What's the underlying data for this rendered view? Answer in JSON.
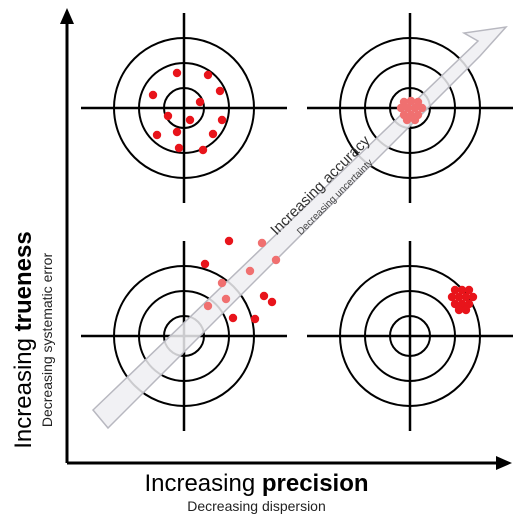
{
  "x_axis": {
    "label_prefix": "Increasing ",
    "label_bold": "precision",
    "sublabel": "Decreasing dispersion"
  },
  "y_axis": {
    "label_prefix": "Increasing ",
    "label_bold": "trueness",
    "sublabel": "Decreasing systematic error"
  },
  "arrow": {
    "label": "Increasing accuracy",
    "sublabel": "Decreasing uncertainty"
  },
  "colors": {
    "dot": "#e8141b",
    "dot_faded": "#f07070",
    "arrow_fill": "#eeeef2",
    "arrow_stroke": "#b8b8c0"
  }
}
